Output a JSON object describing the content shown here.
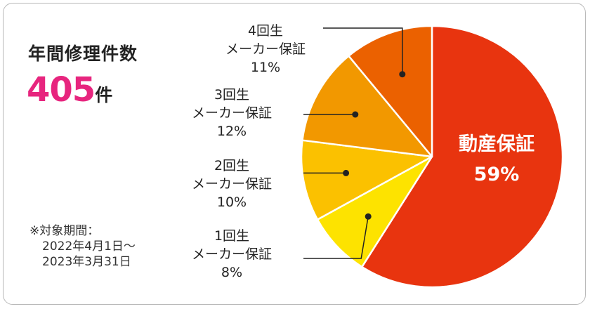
{
  "heading": {
    "title": "年間修理件数",
    "count": "405",
    "count_unit": "件"
  },
  "note": {
    "line1": "※対象期間：",
    "line2": "2022年4月1日～",
    "line3": "2023年3月31日"
  },
  "colors": {
    "accent": "#e7257e",
    "slices": [
      "#e8340f",
      "#fde300",
      "#fbc100",
      "#f29800",
      "#eb6100"
    ]
  },
  "chart_data": {
    "type": "pie",
    "title": "",
    "categories": [
      "動産保証",
      "1回生メーカー保証",
      "2回生メーカー保証",
      "3回生メーカー保証",
      "4回生メーカー保証"
    ],
    "values": [
      59,
      8,
      10,
      12,
      11
    ],
    "labels": [
      {
        "lines": [
          "動産保証"
        ],
        "pct": "59%"
      },
      {
        "lines": [
          "1回生",
          "メーカー保証"
        ],
        "pct": "8%"
      },
      {
        "lines": [
          "2回生",
          "メーカー保証"
        ],
        "pct": "10%"
      },
      {
        "lines": [
          "3回生",
          "メーカー保証"
        ],
        "pct": "12%"
      },
      {
        "lines": [
          "4回生",
          "メーカー保証"
        ],
        "pct": "11%"
      }
    ]
  }
}
